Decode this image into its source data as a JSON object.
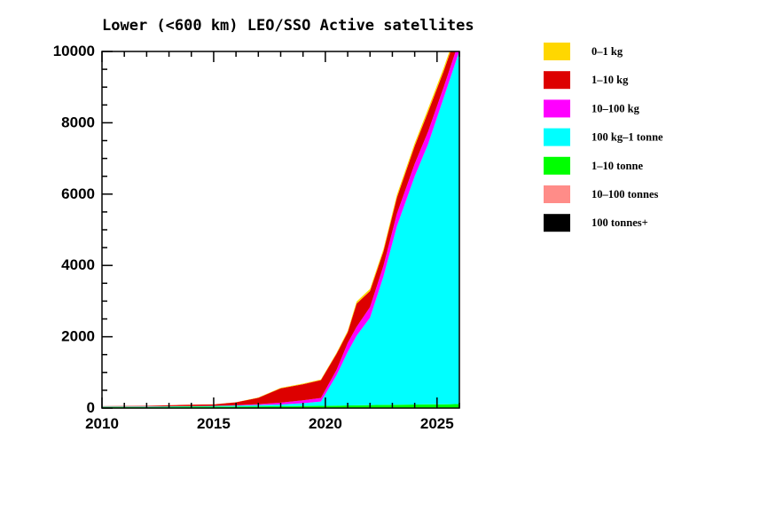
{
  "chart_data": {
    "type": "area",
    "stacked": true,
    "title": "Lower (<600 km) LEO/SSO Active satellites",
    "xlabel": "",
    "ylabel": "",
    "xlim": [
      2010,
      2026
    ],
    "ylim": [
      0,
      10000
    ],
    "xticks": [
      2010,
      2015,
      2020,
      2025
    ],
    "yticks": [
      0,
      2000,
      4000,
      6000,
      8000,
      10000
    ],
    "grid": false,
    "legend_position": "right",
    "x": [
      2010,
      2012,
      2014,
      2015,
      2016,
      2017,
      2018,
      2019,
      2019.8,
      2020.5,
      2021,
      2021.4,
      2022,
      2022.6,
      2023.2,
      2024,
      2024.6,
      2025.3,
      2026
    ],
    "series": [
      {
        "name": "100 tonnes+",
        "color": "#000000",
        "values": [
          0,
          0,
          0,
          0,
          0,
          0,
          0,
          0,
          0,
          0,
          0,
          0,
          0,
          0,
          0,
          0,
          0,
          0,
          0
        ]
      },
      {
        "name": "10-100 tonnes",
        "color": "#ff8c88",
        "values": [
          2,
          2,
          3,
          3,
          3,
          3,
          3,
          3,
          3,
          4,
          4,
          4,
          4,
          4,
          4,
          5,
          5,
          5,
          5
        ]
      },
      {
        "name": "1-10 tonne",
        "color": "#00ff00",
        "values": [
          30,
          30,
          35,
          35,
          40,
          45,
          50,
          55,
          60,
          65,
          70,
          75,
          80,
          85,
          90,
          95,
          100,
          100,
          110
        ]
      },
      {
        "name": "100 kg-1 tonne",
        "color": "#00ffff",
        "values": [
          10,
          12,
          15,
          20,
          30,
          40,
          50,
          80,
          120,
          850,
          1500,
          1950,
          2450,
          3600,
          5000,
          6400,
          7300,
          8600,
          9900
        ]
      },
      {
        "name": "10-100 kg",
        "color": "#ff00ff",
        "values": [
          2,
          2,
          3,
          5,
          8,
          20,
          50,
          80,
          100,
          150,
          250,
          250,
          300,
          300,
          350,
          350,
          350,
          300,
          300
        ]
      },
      {
        "name": "1-10 kg",
        "color": "#dd0000",
        "values": [
          10,
          15,
          40,
          40,
          80,
          180,
          400,
          450,
          500,
          450,
          300,
          650,
          450,
          400,
          450,
          500,
          550,
          450,
          400
        ]
      },
      {
        "name": "0-1 kg",
        "color": "#ffd700",
        "values": [
          0,
          0,
          2,
          3,
          5,
          10,
          15,
          20,
          20,
          30,
          40,
          60,
          60,
          70,
          80,
          80,
          90,
          90,
          90
        ]
      }
    ]
  }
}
